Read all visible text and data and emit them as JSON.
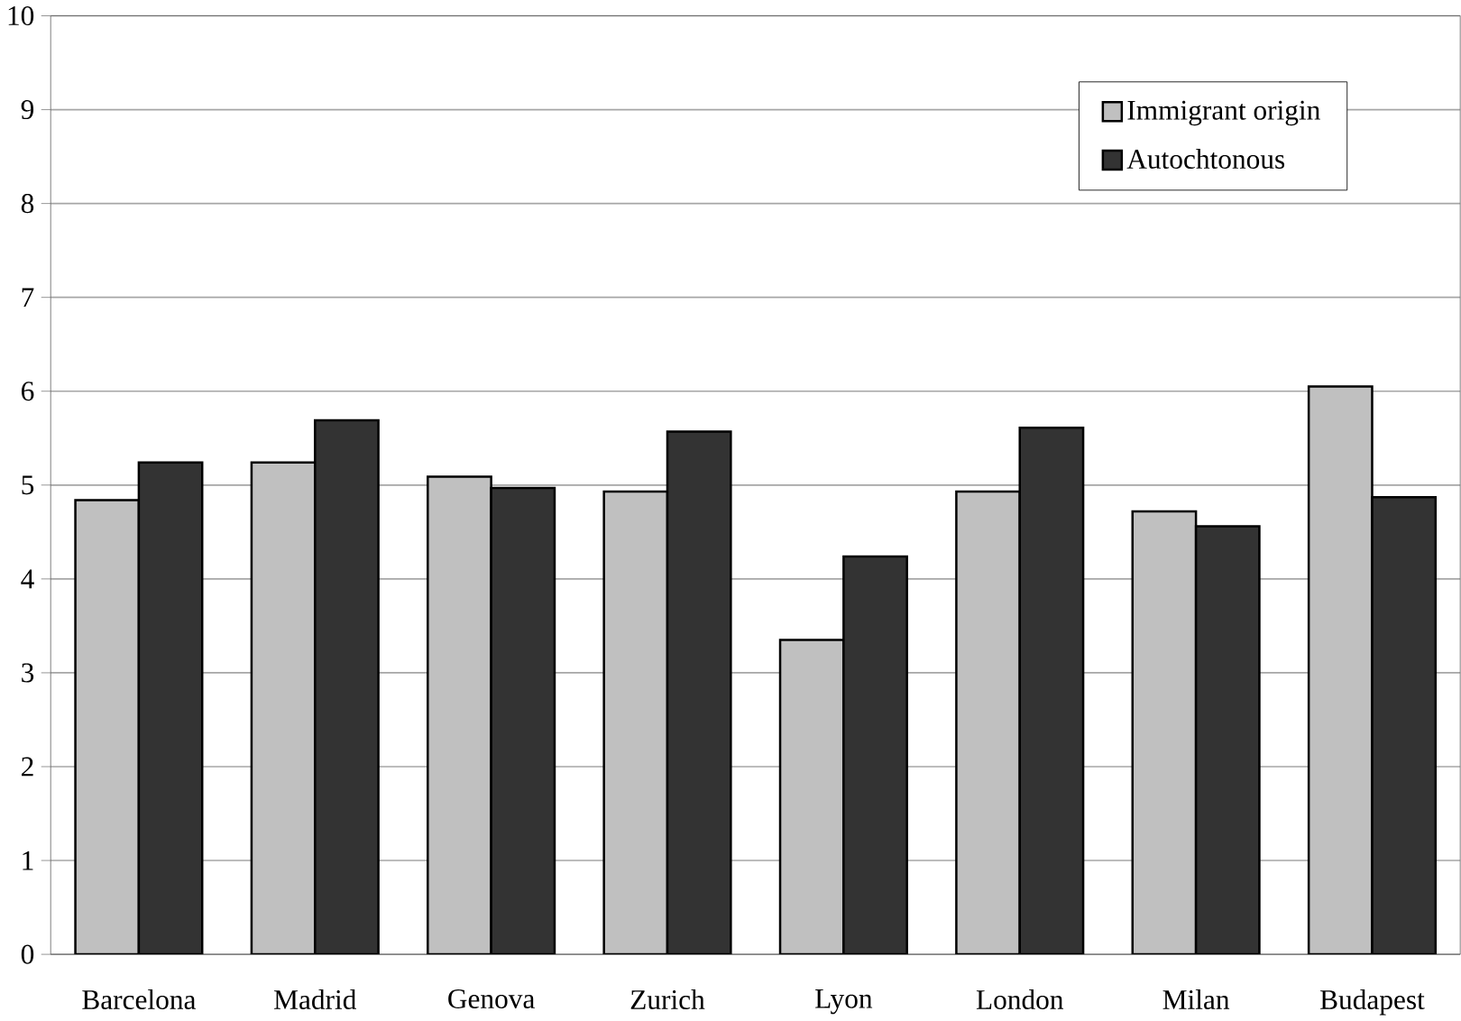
{
  "chart_data": {
    "type": "bar",
    "categories": [
      "Barcelona",
      "Madrid",
      "Genova",
      "Zurich",
      "Lyon",
      "London",
      "Milan",
      "Budapest"
    ],
    "series": [
      {
        "name": "Immigrant origin",
        "color": "#c0c0c0",
        "values": [
          4.84,
          5.24,
          5.09,
          4.93,
          3.35,
          4.93,
          4.72,
          6.05
        ]
      },
      {
        "name": "Autochtonous",
        "color": "#333333",
        "values": [
          5.24,
          5.69,
          4.97,
          5.57,
          4.24,
          5.61,
          4.56,
          4.87
        ]
      }
    ],
    "ylim": [
      0,
      10
    ],
    "yticks": [
      0,
      1,
      2,
      3,
      4,
      5,
      6,
      7,
      8,
      9,
      10
    ],
    "grid": "y",
    "legend": "top right"
  }
}
